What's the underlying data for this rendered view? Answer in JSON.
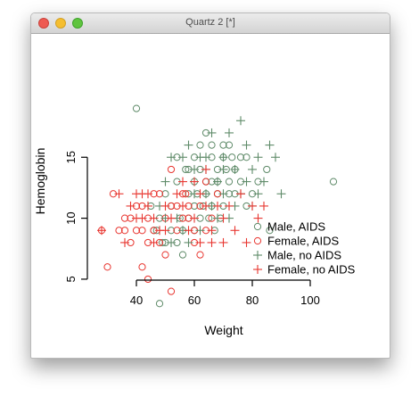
{
  "window": {
    "title": "Quartz 2 [*]"
  },
  "chart_data": {
    "type": "scatter",
    "xlabel": "Weight",
    "ylabel": "Hemoglobin",
    "xlim": [
      32,
      112
    ],
    "ylim": [
      2.8,
      20.8
    ],
    "x_ticks": [
      "40",
      "60",
      "80",
      "100"
    ],
    "y_ticks": [
      "5",
      "10",
      "15"
    ],
    "legend_position": "bottom-right",
    "series": [
      {
        "name": "Male, AIDS",
        "marker": "circle",
        "color": "#5e8a68",
        "points": [
          [
            40,
            19
          ],
          [
            48,
            3
          ],
          [
            108,
            13
          ],
          [
            86,
            9
          ],
          [
            54,
            13
          ],
          [
            57,
            14
          ],
          [
            60,
            15
          ],
          [
            62,
            16
          ],
          [
            64,
            17
          ],
          [
            66,
            15
          ],
          [
            68,
            14
          ],
          [
            70,
            16
          ],
          [
            72,
            13
          ],
          [
            58,
            12
          ],
          [
            60,
            11
          ],
          [
            62,
            10
          ],
          [
            64,
            12
          ],
          [
            66,
            11
          ],
          [
            68,
            12
          ],
          [
            70,
            11
          ],
          [
            72,
            12
          ],
          [
            74,
            14
          ],
          [
            76,
            13
          ],
          [
            78,
            15
          ],
          [
            80,
            12
          ],
          [
            55,
            10
          ],
          [
            52,
            11
          ],
          [
            50,
            12
          ],
          [
            48,
            10
          ],
          [
            46,
            9
          ],
          [
            50,
            8
          ],
          [
            52,
            9
          ],
          [
            54,
            8
          ],
          [
            56,
            7
          ],
          [
            58,
            10
          ],
          [
            60,
            13
          ],
          [
            62,
            14
          ],
          [
            64,
            13
          ],
          [
            66,
            16
          ],
          [
            68,
            13
          ],
          [
            70,
            15
          ],
          [
            72,
            16
          ],
          [
            74,
            12
          ],
          [
            78,
            11
          ],
          [
            82,
            13
          ],
          [
            45,
            11
          ],
          [
            47,
            9
          ],
          [
            49,
            8
          ],
          [
            56,
            9
          ],
          [
            60,
            9
          ],
          [
            63,
            11
          ],
          [
            65,
            10
          ],
          [
            67,
            9
          ],
          [
            69,
            10
          ],
          [
            71,
            14
          ],
          [
            73,
            15
          ],
          [
            54,
            15
          ],
          [
            58,
            14
          ],
          [
            61,
            12
          ],
          [
            66,
            13
          ],
          [
            76,
            15
          ],
          [
            85,
            14
          ]
        ]
      },
      {
        "name": "Female, AIDS",
        "marker": "circle",
        "color": "#e8352f",
        "points": [
          [
            28,
            9
          ],
          [
            32,
            12
          ],
          [
            34,
            9
          ],
          [
            36,
            10
          ],
          [
            38,
            8
          ],
          [
            40,
            11
          ],
          [
            42,
            9
          ],
          [
            44,
            10
          ],
          [
            46,
            12
          ],
          [
            48,
            8
          ],
          [
            50,
            10
          ],
          [
            52,
            11
          ],
          [
            54,
            9
          ],
          [
            56,
            12
          ],
          [
            58,
            10
          ],
          [
            60,
            9
          ],
          [
            62,
            11
          ],
          [
            64,
            13
          ],
          [
            66,
            10
          ],
          [
            44,
            5
          ],
          [
            42,
            6
          ],
          [
            50,
            7
          ],
          [
            60,
            8
          ],
          [
            62,
            7
          ],
          [
            68,
            12
          ],
          [
            52,
            14
          ],
          [
            48,
            12
          ],
          [
            38,
            10
          ],
          [
            36,
            9
          ],
          [
            42,
            11
          ],
          [
            46,
            9
          ],
          [
            54,
            11
          ],
          [
            56,
            10
          ],
          [
            58,
            11
          ],
          [
            64,
            9
          ],
          [
            44,
            8
          ],
          [
            40,
            9
          ],
          [
            30,
            6
          ],
          [
            52,
            4
          ],
          [
            57,
            12
          ]
        ]
      },
      {
        "name": "Male, no AIDS",
        "marker": "plus",
        "color": "#5e8a68",
        "points": [
          [
            50,
            13
          ],
          [
            52,
            15
          ],
          [
            56,
            15
          ],
          [
            58,
            16
          ],
          [
            60,
            14
          ],
          [
            62,
            15
          ],
          [
            64,
            14
          ],
          [
            66,
            17
          ],
          [
            68,
            13
          ],
          [
            70,
            15
          ],
          [
            72,
            17
          ],
          [
            76,
            18
          ],
          [
            78,
            16
          ],
          [
            80,
            14
          ],
          [
            82,
            15
          ],
          [
            84,
            13
          ],
          [
            86,
            16
          ],
          [
            88,
            15
          ],
          [
            90,
            12
          ],
          [
            74,
            14
          ],
          [
            60,
            12
          ],
          [
            64,
            12
          ],
          [
            66,
            11
          ],
          [
            68,
            10
          ],
          [
            70,
            12
          ],
          [
            72,
            10
          ],
          [
            74,
            11
          ],
          [
            76,
            12
          ],
          [
            78,
            13
          ],
          [
            80,
            11
          ],
          [
            82,
            12
          ],
          [
            56,
            9
          ],
          [
            58,
            8
          ],
          [
            62,
            9
          ],
          [
            50,
            10
          ],
          [
            48,
            11
          ],
          [
            52,
            8
          ],
          [
            54,
            10
          ],
          [
            64,
            15
          ],
          [
            70,
            14
          ]
        ]
      },
      {
        "name": "Female, no AIDS",
        "marker": "plus",
        "color": "#e8352f",
        "points": [
          [
            28,
            9
          ],
          [
            36,
            8
          ],
          [
            38,
            11
          ],
          [
            40,
            12
          ],
          [
            42,
            10
          ],
          [
            44,
            12
          ],
          [
            46,
            8
          ],
          [
            48,
            9
          ],
          [
            50,
            11
          ],
          [
            52,
            10
          ],
          [
            54,
            12
          ],
          [
            56,
            11
          ],
          [
            58,
            9
          ],
          [
            60,
            10
          ],
          [
            62,
            12
          ],
          [
            64,
            11
          ],
          [
            66,
            9
          ],
          [
            68,
            11
          ],
          [
            70,
            10
          ],
          [
            72,
            11
          ],
          [
            74,
            9
          ],
          [
            76,
            12
          ],
          [
            78,
            8
          ],
          [
            80,
            11
          ],
          [
            82,
            10
          ],
          [
            84,
            11
          ],
          [
            64,
            14
          ],
          [
            60,
            13
          ],
          [
            62,
            8
          ],
          [
            66,
            8
          ],
          [
            44,
            11
          ],
          [
            46,
            10
          ],
          [
            34,
            12
          ],
          [
            40,
            10
          ],
          [
            42,
            12
          ],
          [
            50,
            9
          ],
          [
            70,
            8
          ],
          [
            56,
            13
          ]
        ]
      }
    ]
  }
}
